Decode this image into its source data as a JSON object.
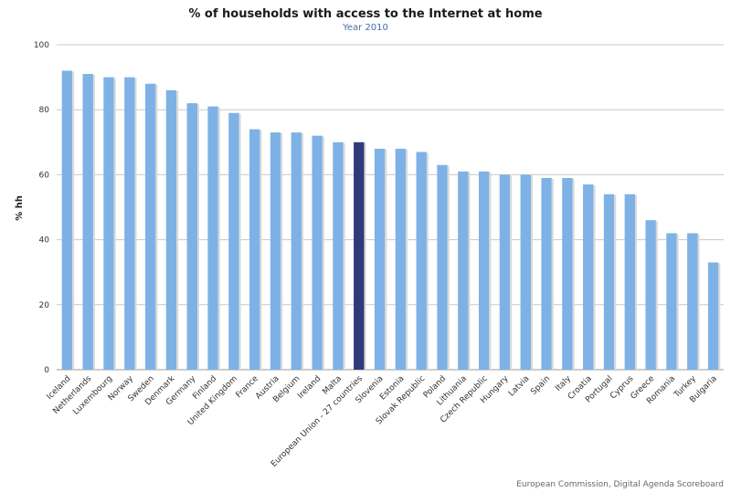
{
  "chart_data": {
    "type": "bar",
    "title": "% of households with access to the Internet at home",
    "subtitle": "Year 2010",
    "xlabel": "",
    "ylabel": "% hh",
    "ylim": [
      0,
      100
    ],
    "yticks": [
      0,
      20,
      40,
      60,
      80,
      100
    ],
    "grid": true,
    "legend": "none",
    "categories": [
      "Iceland",
      "Netherlands",
      "Luxembourg",
      "Norway",
      "Sweden",
      "Denmark",
      "Germany",
      "Finland",
      "United Kingdom",
      "France",
      "Austria",
      "Belgium",
      "Ireland",
      "Malta",
      "European Union - 27 countries",
      "Slovenia",
      "Estonia",
      "Slovak Republic",
      "Poland",
      "Lithuania",
      "Czech Republic",
      "Hungary",
      "Latvia",
      "Spain",
      "Italy",
      "Croatia",
      "Portugal",
      "Cyprus",
      "Greece",
      "Romania",
      "Turkey",
      "Bulgaria"
    ],
    "values": [
      92,
      91,
      90,
      90,
      88,
      86,
      82,
      81,
      79,
      74,
      73,
      73,
      72,
      70,
      70,
      68,
      68,
      67,
      63,
      61,
      61,
      60,
      60,
      59,
      59,
      57,
      54,
      54,
      46,
      42,
      42,
      33
    ],
    "highlight_category": "European Union - 27 countries",
    "colors": {
      "bar": "#7eb2e6",
      "bar_highlight": "#2e3a7a",
      "grid": "#c8c8c8"
    }
  },
  "footer": {
    "credit": "European Commission, Digital Agenda Scoreboard"
  }
}
